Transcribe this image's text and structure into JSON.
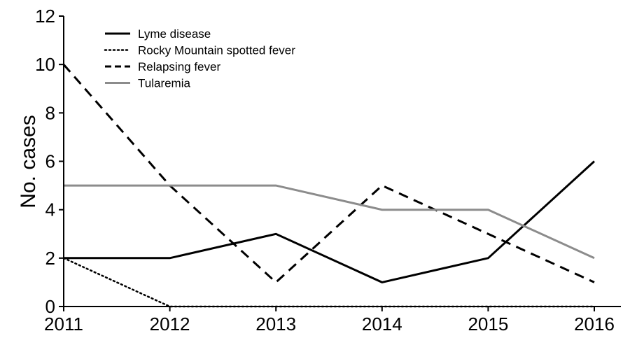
{
  "chart_data": {
    "type": "line",
    "title": "",
    "xlabel": "",
    "ylabel": "No. cases",
    "x": [
      "2011",
      "2012",
      "2013",
      "2014",
      "2015",
      "2016"
    ],
    "ylim": [
      0,
      12
    ],
    "yticks": [
      0,
      2,
      4,
      6,
      8,
      10,
      12
    ],
    "grid": false,
    "legend_position": "top-left",
    "series": [
      {
        "name": "Lyme disease",
        "values": [
          2,
          2,
          3,
          1,
          2,
          6
        ],
        "color": "#000000",
        "dash": "solid"
      },
      {
        "name": "Rocky Mountain spotted fever",
        "values": [
          2,
          0,
          0,
          0,
          0,
          0
        ],
        "color": "#000000",
        "dash": "dotted"
      },
      {
        "name": "Relapsing fever",
        "values": [
          10,
          5,
          1,
          5,
          3,
          1
        ],
        "color": "#000000",
        "dash": "dashed"
      },
      {
        "name": "Tularemia",
        "values": [
          5,
          5,
          5,
          4,
          4,
          2
        ],
        "color": "#8c8c8c",
        "dash": "solid"
      }
    ]
  }
}
